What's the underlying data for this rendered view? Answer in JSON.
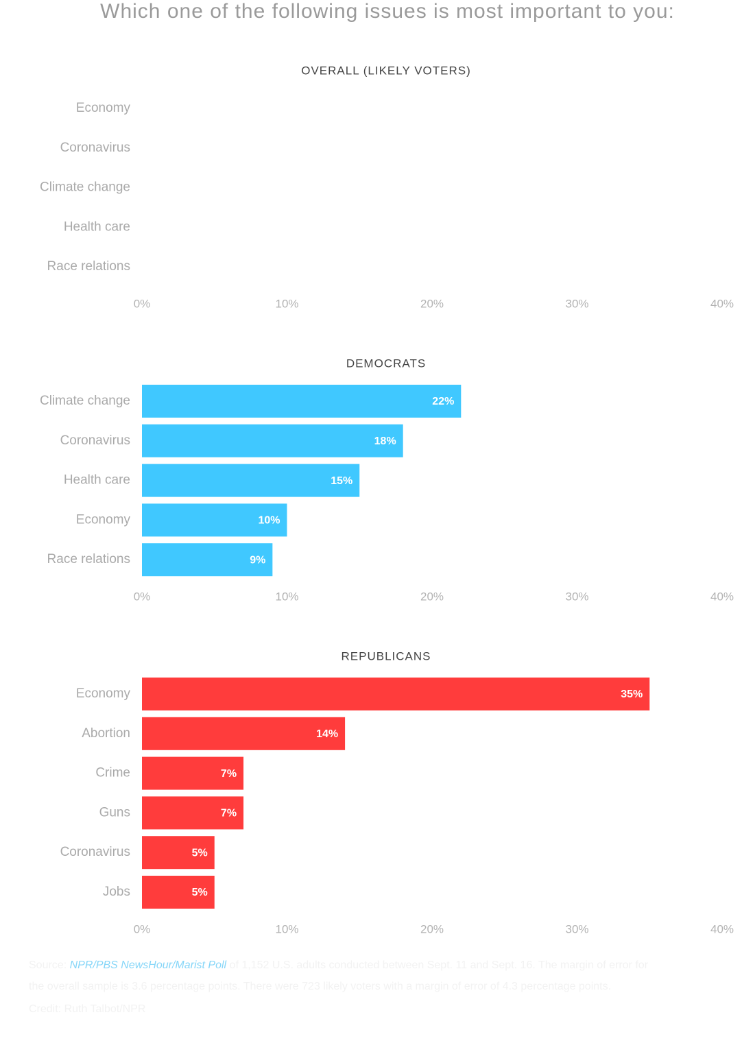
{
  "title": "Which one of the following issues is most important to you:",
  "chart_data": [
    {
      "type": "bar",
      "orientation": "horizontal",
      "title": "OVERALL (LIKELY VOTERS)",
      "categories": [
        "Economy",
        "Coronavirus",
        "Climate change",
        "Health care",
        "Race relations"
      ],
      "values": [
        null,
        null,
        null,
        null,
        null
      ],
      "xlim": [
        0,
        40
      ],
      "xticks": [
        {
          "value": 0,
          "label": "0%"
        },
        {
          "value": 10,
          "label": "10%"
        },
        {
          "value": 20,
          "label": "20%"
        },
        {
          "value": 30,
          "label": "30%"
        },
        {
          "value": 40,
          "label": "40%"
        }
      ]
    },
    {
      "type": "bar",
      "orientation": "horizontal",
      "title": "DEMOCRATS",
      "color": "#40c8ff",
      "categories": [
        "Climate change",
        "Coronavirus",
        "Health care",
        "Economy",
        "Race relations"
      ],
      "values": [
        22,
        18,
        15,
        10,
        9
      ],
      "value_labels": [
        "22%",
        "18%",
        "15%",
        "10%",
        "9%"
      ],
      "xlim": [
        0,
        40
      ],
      "xticks": [
        {
          "value": 0,
          "label": "0%"
        },
        {
          "value": 10,
          "label": "10%"
        },
        {
          "value": 20,
          "label": "20%"
        },
        {
          "value": 30,
          "label": "30%"
        },
        {
          "value": 40,
          "label": "40%"
        }
      ]
    },
    {
      "type": "bar",
      "orientation": "horizontal",
      "title": "REPUBLICANS",
      "color": "#ff3c3c",
      "categories": [
        "Economy",
        "Abortion",
        "Crime",
        "Guns",
        "Coronavirus",
        "Jobs"
      ],
      "values": [
        35,
        14,
        7,
        7,
        5,
        5
      ],
      "value_labels": [
        "35%",
        "14%",
        "7%",
        "7%",
        "5%",
        "5%"
      ],
      "xlim": [
        0,
        40
      ],
      "xticks": [
        {
          "value": 0,
          "label": "0%"
        },
        {
          "value": 10,
          "label": "10%"
        },
        {
          "value": 20,
          "label": "20%"
        },
        {
          "value": 30,
          "label": "30%"
        },
        {
          "value": 40,
          "label": "40%"
        }
      ]
    }
  ],
  "source": {
    "prefix": "Source: ",
    "link": "NPR/PBS NewsHour/Marist Poll",
    "line1": " of 1,152 U.S. adults conducted between Sept. 11 and Sept. 16. The margin of error for",
    "line2": "the overall sample is 3.6 percentage points. There were 723 likely voters with a margin of error of 4.3 percentage points.",
    "credit": "Credit: Ruth Talbot/NPR"
  }
}
